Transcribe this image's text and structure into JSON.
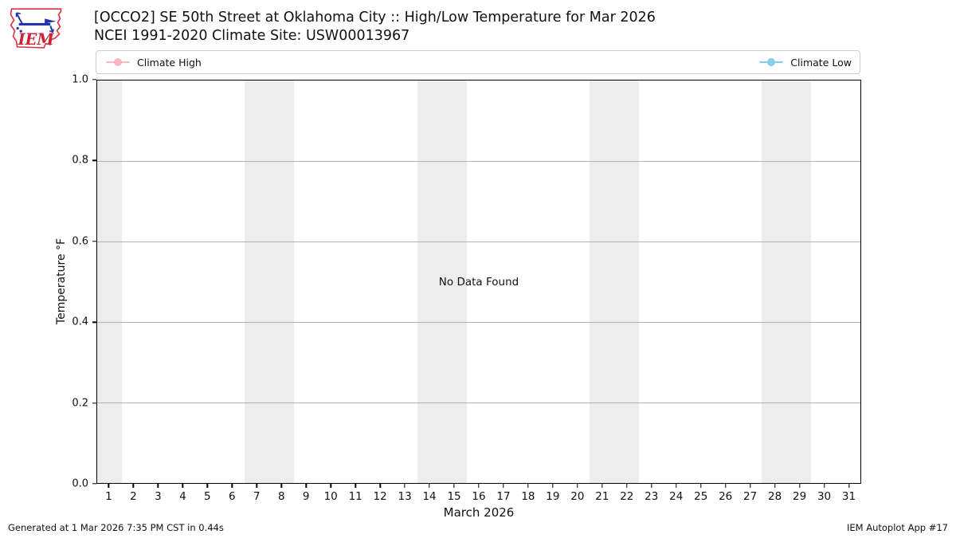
{
  "header": {
    "title_line1": "[OCCO2] SE 50th Street at Oklahoma City :: High/Low Temperature for Mar 2026",
    "title_line2": "NCEI 1991-2020 Climate Site: USW00013967",
    "logo_text": "IEM"
  },
  "legend": {
    "items": [
      {
        "label": "Climate High",
        "color": "#ffb6c1"
      },
      {
        "label": "Climate Low",
        "color": "#87ceeb"
      }
    ]
  },
  "chart_data": {
    "type": "line",
    "title": "[OCCO2] SE 50th Street at Oklahoma City :: High/Low Temperature for Mar 2026",
    "subtitle": "NCEI 1991-2020 Climate Site: USW00013967",
    "xlabel": "March 2026",
    "ylabel": "Temperature °F",
    "no_data_message": "No Data Found",
    "series": [
      {
        "name": "Climate High",
        "color": "#ffb6c1",
        "values": []
      },
      {
        "name": "Climate Low",
        "color": "#87ceeb",
        "values": []
      }
    ],
    "x_ticks": [
      1,
      2,
      3,
      4,
      5,
      6,
      7,
      8,
      9,
      10,
      11,
      12,
      13,
      14,
      15,
      16,
      17,
      18,
      19,
      20,
      21,
      22,
      23,
      24,
      25,
      26,
      27,
      28,
      29,
      30,
      31
    ],
    "xlim": [
      0.5,
      31.5
    ],
    "y_ticks": [
      "0.0",
      "0.2",
      "0.4",
      "0.6",
      "0.8",
      "1.0"
    ],
    "ylim": [
      0.0,
      1.0
    ],
    "grid": true,
    "legend_position": "top",
    "weekend_bands": [
      [
        0.5,
        1.5
      ],
      [
        6.5,
        8.5
      ],
      [
        13.5,
        15.5
      ],
      [
        20.5,
        22.5
      ],
      [
        27.5,
        29.5
      ]
    ],
    "band_color": "#ededed",
    "grid_color": "#b2b2b2"
  },
  "footer": {
    "generated": "Generated at 1 Mar 2026 7:35 PM CST in 0.44s",
    "app": "IEM Autoplot App #17"
  }
}
